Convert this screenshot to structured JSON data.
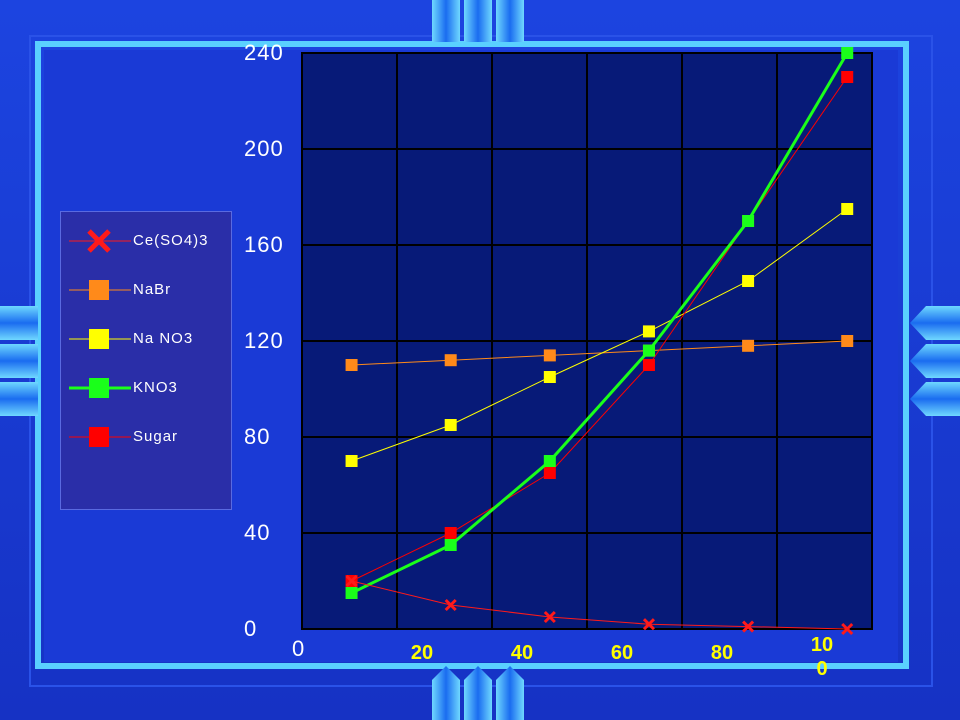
{
  "chart_data": {
    "type": "line",
    "title": "",
    "xlabel": "",
    "ylabel": "",
    "x": [
      10,
      30,
      50,
      70,
      90,
      110
    ],
    "xlim": [
      0,
      115
    ],
    "ylim": [
      0,
      240
    ],
    "y_ticks": [
      "0",
      "40",
      "80",
      "120",
      "160",
      "200",
      "240"
    ],
    "x_ticks": [
      {
        "label": "0",
        "x": 0
      },
      {
        "label": "20",
        "x": 20
      },
      {
        "label": "40",
        "x": 40
      },
      {
        "label": "60",
        "x": 60
      },
      {
        "label": "80",
        "x": 80
      },
      {
        "label": "10\n0",
        "x": 100
      }
    ],
    "grid": true,
    "legend_position": "left",
    "series": [
      {
        "name": "Ce(SO4)3",
        "values": [
          20,
          10,
          5,
          2,
          1,
          0
        ],
        "color": "#ff1a1a",
        "marker": "x"
      },
      {
        "name": "NaBr",
        "values": [
          110,
          112,
          114,
          116,
          118,
          120
        ],
        "color": "#ff8a1a",
        "marker": "square"
      },
      {
        "name": "Na NO3",
        "values": [
          70,
          85,
          105,
          124,
          145,
          175
        ],
        "color": "#ffff00",
        "marker": "square"
      },
      {
        "name": "KNO3",
        "values": [
          15,
          35,
          70,
          116,
          170,
          240
        ],
        "color": "#1aff1a",
        "marker": "square"
      },
      {
        "name": "Sugar",
        "values": [
          20,
          40,
          65,
          110,
          170,
          230
        ],
        "color": "#ff0000",
        "marker": "square"
      }
    ]
  },
  "colors": {
    "background": "#1a3ad6",
    "plot_area": "#071a78",
    "frame": "#5ad0ff",
    "tick_text": "#ffffff",
    "x_tick_text": "#ffff00"
  }
}
